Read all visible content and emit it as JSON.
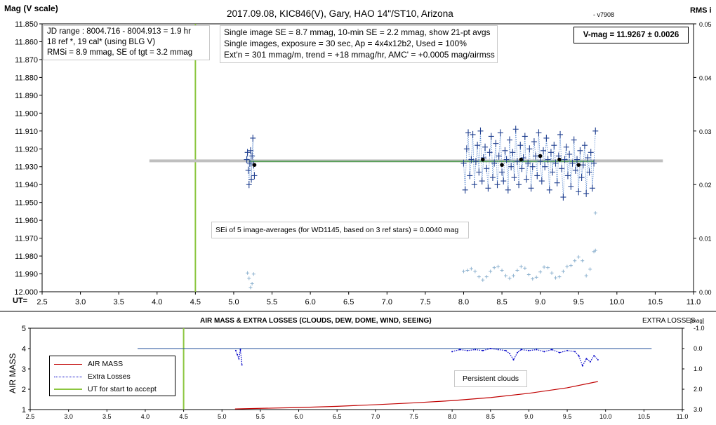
{
  "chart_data": [
    {
      "type": "scatter",
      "title": "2017.09.08,  KIC846(V),  Gary,  HAO 14\"/ST10, Arizona",
      "version": "- v7908",
      "ylabel": "Mag (V scale)",
      "y2label": "RMS i",
      "xlabel": "UT=",
      "xlim": [
        2.5,
        11.0
      ],
      "ylim": [
        11.85,
        12.0
      ],
      "y_reversed": true,
      "y2lim": [
        0.0,
        0.05
      ],
      "x_ticks": [
        "2.5",
        "3.0",
        "3.5",
        "4.0",
        "4.5",
        "5.0",
        "5.5",
        "6.0",
        "6.5",
        "7.0",
        "7.5",
        "8.0",
        "8.5",
        "9.0",
        "9.5",
        "10.0",
        "10.5",
        "11.0"
      ],
      "y_ticks": [
        "11.850",
        "11.860",
        "11.870",
        "11.880",
        "11.890",
        "11.900",
        "11.910",
        "11.920",
        "11.930",
        "11.940",
        "11.950",
        "11.960",
        "11.970",
        "11.980",
        "11.990",
        "12.000"
      ],
      "y2_ticks": [
        "0.00",
        "0.01",
        "0.02",
        "0.03",
        "0.04",
        "0.05"
      ],
      "grid": false,
      "colors": {
        "single": "#1f3f8f",
        "avg": "#000000",
        "rms": "#8fb3d0",
        "model": "#bfbfbf",
        "fit": "#5aa05a",
        "ut_start": "#8cc63f"
      },
      "ut_start_marker": 4.5,
      "model_line": {
        "x": [
          3.9,
          10.6
        ],
        "y": 11.9267
      },
      "fit_line": {
        "x": [
          5.2,
          9.7
        ],
        "y": [
          11.927,
          11.927
        ]
      },
      "annotations": {
        "info1": [
          "JD range : 8004.716 - 8004.913 =  1.9  hr",
          "18 ref *, 19 cal* (using BLG V)",
          "RMSi = 8.9 mmag, SE of tgt = 3.2 mmag"
        ],
        "info2": [
          "Single image SE = 8.7 mmag, 10-min SE = 2.2 mmag, show 21-pt avgs",
          "Single images, exposure = 30 sec, Ap = 4x4x12b2, Used = 100%",
          "Ext'n = 301 mmag/m, trend = +18 mmag/hr, AMC' = +0.0005 mag/airmss"
        ],
        "vmag": "V-mag = 11.9267 ± 0.0026",
        "sei": "SEi of 5 image-averages (for WD1145, based on 3 ref stars) = 0.0040 mag"
      },
      "series": [
        {
          "name": "single images",
          "x": [
            5.17,
            5.18,
            5.19,
            5.2,
            5.21,
            5.22,
            5.23,
            5.24,
            5.25,
            5.26,
            5.27,
            8.0,
            8.02,
            8.04,
            8.06,
            8.08,
            8.1,
            8.12,
            8.14,
            8.16,
            8.18,
            8.2,
            8.22,
            8.24,
            8.26,
            8.28,
            8.3,
            8.32,
            8.34,
            8.36,
            8.38,
            8.4,
            8.42,
            8.44,
            8.46,
            8.48,
            8.5,
            8.52,
            8.54,
            8.56,
            8.58,
            8.6,
            8.62,
            8.64,
            8.66,
            8.68,
            8.7,
            8.72,
            8.74,
            8.76,
            8.78,
            8.8,
            8.82,
            8.84,
            8.86,
            8.88,
            8.9,
            8.92,
            8.94,
            8.96,
            8.98,
            9.0,
            9.02,
            9.04,
            9.06,
            9.08,
            9.1,
            9.12,
            9.14,
            9.16,
            9.18,
            9.2,
            9.22,
            9.24,
            9.26,
            9.28,
            9.3,
            9.32,
            9.34,
            9.36,
            9.38,
            9.4,
            9.42,
            9.44,
            9.46,
            9.48,
            9.5,
            9.52,
            9.54,
            9.56,
            9.58,
            9.6,
            9.62,
            9.64,
            9.66,
            9.68,
            9.7,
            9.72
          ],
          "y": [
            11.926,
            11.922,
            11.932,
            11.94,
            11.928,
            11.921,
            11.937,
            11.924,
            11.914,
            11.929,
            11.935,
            11.928,
            11.943,
            11.92,
            11.911,
            11.935,
            11.926,
            11.912,
            11.94,
            11.927,
            11.918,
            11.933,
            11.91,
            11.938,
            11.925,
            11.919,
            11.931,
            11.942,
            11.922,
            11.913,
            11.936,
            11.928,
            11.917,
            11.94,
            11.924,
            11.911,
            11.933,
            11.938,
            11.921,
            11.926,
            11.943,
            11.915,
            11.93,
            11.922,
            11.936,
            11.909,
            11.927,
            11.94,
            11.918,
            11.931,
            11.925,
            11.913,
            11.937,
            11.928,
            11.92,
            11.942,
            11.93,
            11.916,
            11.924,
            11.935,
            11.911,
            11.927,
            11.938,
            11.921,
            11.93,
            11.914,
            11.926,
            11.943,
            11.922,
            11.933,
            11.918,
            11.928,
            11.939,
            11.924,
            11.912,
            11.931,
            11.947,
            11.926,
            11.919,
            11.935,
            11.923,
            11.941,
            11.928,
            11.915,
            11.932,
            11.926,
            11.944,
            11.921,
            11.936,
            11.929,
            11.918,
            11.945,
            11.925,
            11.933,
            11.922,
            11.942,
            11.928,
            11.91
          ]
        },
        {
          "name": "21-pt avgs",
          "x": [
            5.27,
            8.25,
            8.5,
            8.75,
            9.0,
            9.25,
            9.5
          ],
          "y": [
            11.929,
            11.926,
            11.929,
            11.926,
            11.924,
            11.926,
            11.929
          ]
        },
        {
          "name": "RMS i",
          "axis": "y2",
          "x": [
            5.18,
            5.2,
            5.22,
            5.24,
            5.26,
            8.0,
            8.05,
            8.1,
            8.15,
            8.2,
            8.25,
            8.3,
            8.35,
            8.4,
            8.45,
            8.5,
            8.55,
            8.6,
            8.65,
            8.7,
            8.75,
            8.8,
            8.85,
            8.9,
            8.95,
            9.0,
            9.05,
            9.1,
            9.15,
            9.2,
            9.25,
            9.3,
            9.35,
            9.4,
            9.45,
            9.5,
            9.55,
            9.6,
            9.65,
            9.7,
            9.72
          ],
          "y": [
            0.0035,
            0.0025,
            0.0008,
            0.0015,
            0.0033,
            0.0038,
            0.004,
            0.0043,
            0.0038,
            0.0028,
            0.0022,
            0.0028,
            0.0038,
            0.0045,
            0.0047,
            0.004,
            0.003,
            0.0025,
            0.003,
            0.004,
            0.0047,
            0.0044,
            0.0032,
            0.0024,
            0.0027,
            0.0037,
            0.0046,
            0.0045,
            0.0035,
            0.0026,
            0.0028,
            0.0038,
            0.0047,
            0.0049,
            0.0058,
            0.0065,
            0.0058,
            0.003,
            0.0042,
            0.0075,
            0.0077
          ]
        },
        {
          "name": "RMS outlier",
          "axis": "y2",
          "x": [
            9.72
          ],
          "y": [
            0.0147
          ]
        }
      ]
    },
    {
      "type": "line",
      "title": "AIR MASS & EXTRA LOSSES (CLOUDS, DEW, DOME, WIND, SEEING)",
      "ylabel": "AIR MASS",
      "y2label": "EXTRA LOSSES",
      "y2unit": "[mag]",
      "xlim": [
        2.5,
        11.0
      ],
      "ylim": [
        1,
        5
      ],
      "y2lim": [
        -1.0,
        3.0
      ],
      "y2_reversed": true,
      "x_ticks": [
        "2.5",
        "3.0",
        "3.5",
        "4.0",
        "4.5",
        "5.0",
        "5.5",
        "6.0",
        "6.5",
        "7.0",
        "7.5",
        "8.0",
        "8.5",
        "9.0",
        "9.5",
        "10.0",
        "10.5",
        "11.0"
      ],
      "y_ticks": [
        "1",
        "2",
        "3",
        "4",
        "5"
      ],
      "y2_ticks": [
        "-1.0",
        "0.0",
        "1.0",
        "2.0",
        "3.0"
      ],
      "legend": [
        "AIR MASS",
        "Extra Losses",
        "UT for start to accept"
      ],
      "legend_position": "bottom-left",
      "annotation": "Persistent clouds",
      "ut_start_marker": 4.5,
      "zero_loss_line": {
        "x": [
          3.9,
          10.6
        ],
        "y2": 0.0
      },
      "series": [
        {
          "name": "AIR MASS",
          "x": [
            5.17,
            5.5,
            6.0,
            6.5,
            7.0,
            7.5,
            8.0,
            8.5,
            9.0,
            9.5,
            9.9
          ],
          "y": [
            1.03,
            1.06,
            1.1,
            1.16,
            1.24,
            1.33,
            1.44,
            1.59,
            1.8,
            2.07,
            2.38
          ]
        },
        {
          "name": "Extra Losses",
          "x": [
            5.18,
            5.2,
            5.22,
            5.24,
            5.26,
            8.0,
            8.1,
            8.2,
            8.3,
            8.4,
            8.5,
            8.6,
            8.7,
            8.75,
            8.8,
            8.85,
            8.9,
            9.0,
            9.1,
            9.2,
            9.3,
            9.4,
            9.5,
            9.6,
            9.65,
            9.7,
            9.75,
            9.8,
            9.85,
            9.9
          ],
          "y": [
            0.1,
            0.3,
            0.5,
            0.05,
            0.8,
            0.15,
            0.05,
            0.1,
            0.05,
            0.1,
            0.0,
            0.05,
            0.1,
            0.25,
            0.55,
            0.2,
            0.05,
            0.1,
            0.05,
            0.15,
            0.05,
            0.2,
            0.1,
            0.15,
            0.35,
            0.85,
            0.5,
            0.65,
            0.35,
            0.55
          ]
        }
      ]
    }
  ]
}
